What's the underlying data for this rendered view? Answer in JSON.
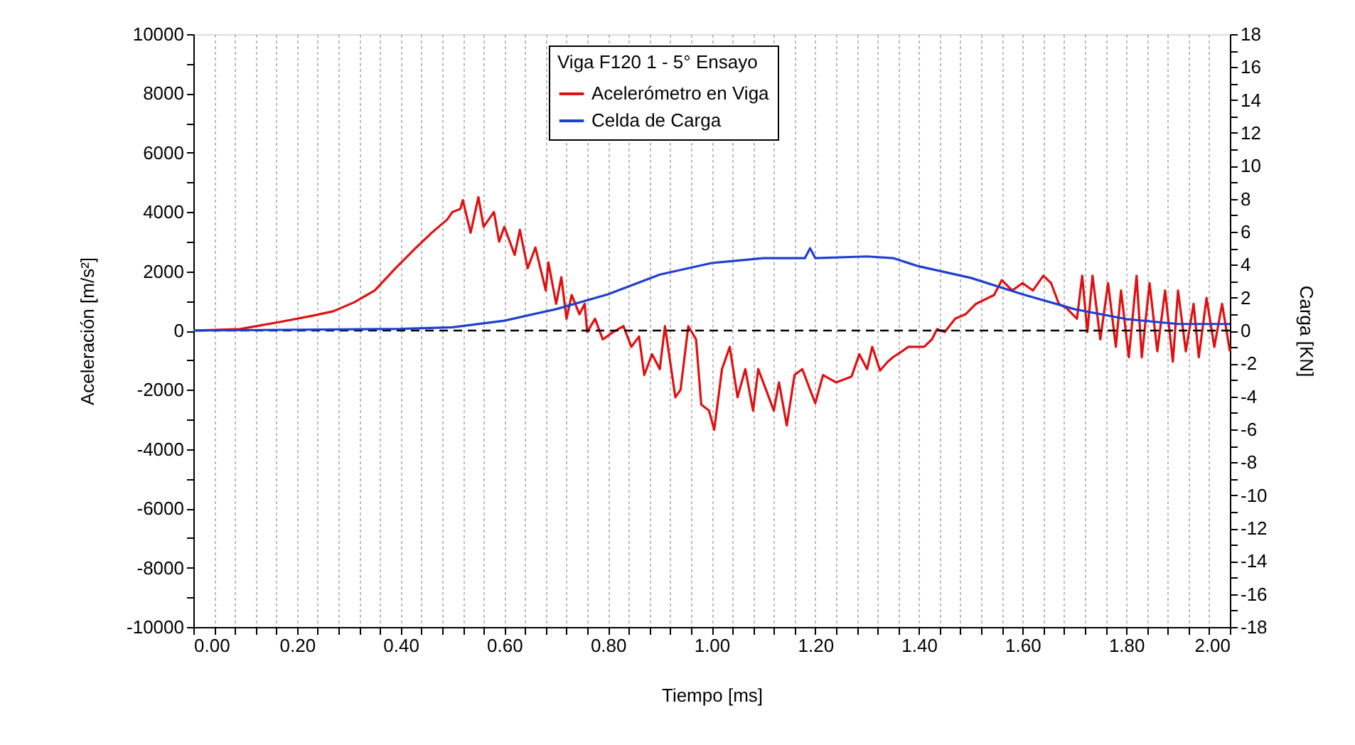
{
  "chart_data": {
    "type": "line",
    "xlabel": "Tiempo [ms]",
    "ylabel": "Aceleración [m/s²]",
    "y2label": "Carga [KN]",
    "legend_title": "Viga F120 1 - 5° Ensayo",
    "legend": "top",
    "grid": "x",
    "xlim": [
      0,
      2
    ],
    "ylim": [
      -10000,
      10000
    ],
    "y2lim": [
      -18,
      18
    ],
    "xticks": [
      {
        "value": 0,
        "label": "0.00"
      },
      {
        "value": 0.04,
        "label": null
      },
      {
        "value": 0.08,
        "label": null
      },
      {
        "value": 0.12,
        "label": null
      },
      {
        "value": 0.16,
        "label": null
      },
      {
        "value": 0.2,
        "label": "0.20"
      },
      {
        "value": 0.24,
        "label": null
      },
      {
        "value": 0.28,
        "label": null
      },
      {
        "value": 0.32,
        "label": null
      },
      {
        "value": 0.36,
        "label": null
      },
      {
        "value": 0.4,
        "label": "0.40"
      },
      {
        "value": 0.44,
        "label": null
      },
      {
        "value": 0.48,
        "label": null
      },
      {
        "value": 0.52,
        "label": null
      },
      {
        "value": 0.56,
        "label": null
      },
      {
        "value": 0.6,
        "label": "0.60"
      },
      {
        "value": 0.64,
        "label": null
      },
      {
        "value": 0.68,
        "label": null
      },
      {
        "value": 0.72,
        "label": null
      },
      {
        "value": 0.76,
        "label": null
      },
      {
        "value": 0.8,
        "label": "0.80"
      },
      {
        "value": 0.84,
        "label": null
      },
      {
        "value": 0.88,
        "label": null
      },
      {
        "value": 0.92,
        "label": null
      },
      {
        "value": 0.96,
        "label": null
      },
      {
        "value": 1,
        "label": "1.00"
      },
      {
        "value": 1.04,
        "label": null
      },
      {
        "value": 1.08,
        "label": null
      },
      {
        "value": 1.12,
        "label": null
      },
      {
        "value": 1.16,
        "label": null
      },
      {
        "value": 1.2,
        "label": "1.20"
      },
      {
        "value": 1.24,
        "label": null
      },
      {
        "value": 1.28,
        "label": null
      },
      {
        "value": 1.32,
        "label": null
      },
      {
        "value": 1.36,
        "label": null
      },
      {
        "value": 1.4,
        "label": "1.40"
      },
      {
        "value": 1.44,
        "label": null
      },
      {
        "value": 1.48,
        "label": null
      },
      {
        "value": 1.52,
        "label": null
      },
      {
        "value": 1.56,
        "label": null
      },
      {
        "value": 1.6,
        "label": "1.60"
      },
      {
        "value": 1.64,
        "label": null
      },
      {
        "value": 1.68,
        "label": null
      },
      {
        "value": 1.72,
        "label": null
      },
      {
        "value": 1.76,
        "label": null
      },
      {
        "value": 1.8,
        "label": "1.80"
      },
      {
        "value": 1.84,
        "label": null
      },
      {
        "value": 1.88,
        "label": null
      },
      {
        "value": 1.92,
        "label": null
      },
      {
        "value": 1.96,
        "label": null
      },
      {
        "value": 2,
        "label": "2.00"
      }
    ],
    "yticks": [
      -10000,
      {
        "value": -9000,
        "label": null
      },
      -8000,
      {
        "value": -7000,
        "label": null
      },
      -6000,
      {
        "value": -5000,
        "label": null
      },
      -4000,
      {
        "value": -3000,
        "label": null
      },
      -2000,
      {
        "value": -1000,
        "label": null
      },
      0,
      {
        "value": 1000,
        "label": null
      },
      2000,
      {
        "value": 3000,
        "label": null
      },
      4000,
      {
        "value": 5000,
        "label": null
      },
      6000,
      {
        "value": 7000,
        "label": null
      },
      8000,
      {
        "value": 9000,
        "label": null
      },
      10000
    ],
    "y2ticks": [
      -18,
      {
        "value": -17,
        "label": null
      },
      -16,
      {
        "value": -15,
        "label": null
      },
      -14,
      {
        "value": -13,
        "label": null
      },
      -12,
      {
        "value": -11,
        "label": null
      },
      -10,
      {
        "value": -9,
        "label": null
      },
      -8,
      {
        "value": -7,
        "label": null
      },
      -6,
      {
        "value": -5,
        "label": null
      },
      -4,
      {
        "value": -3,
        "label": null
      },
      -2,
      {
        "value": -1,
        "label": null
      },
      0,
      {
        "value": 1,
        "label": null
      },
      2,
      {
        "value": 3,
        "label": null
      },
      4,
      {
        "value": 5,
        "label": null
      },
      6,
      {
        "value": 7,
        "label": null
      },
      8,
      {
        "value": 9,
        "label": null
      },
      10,
      {
        "value": 11,
        "label": null
      },
      12,
      {
        "value": 13,
        "label": null
      },
      14,
      {
        "value": 15,
        "label": null
      },
      16,
      {
        "value": 17,
        "label": null
      },
      18
    ],
    "ref_lines": [
      {
        "axis": "y",
        "value": 0,
        "color": "#000000",
        "line_style": "dashed"
      }
    ],
    "series": [
      {
        "name": "Acelerómetro en Viga",
        "color": "#e01010",
        "x": [
          0,
          0.09,
          0.17,
          0.23,
          0.27,
          0.31,
          0.35,
          0.39,
          0.43,
          0.46,
          0.49,
          0.5,
          0.515,
          0.52,
          0.535,
          0.55,
          0.56,
          0.58,
          0.59,
          0.6,
          0.62,
          0.63,
          0.645,
          0.66,
          0.68,
          0.685,
          0.7,
          0.71,
          0.72,
          0.73,
          0.745,
          0.755,
          0.76,
          0.775,
          0.79,
          0.81,
          0.83,
          0.845,
          0.86,
          0.87,
          0.885,
          0.9,
          0.91,
          0.93,
          0.94,
          0.955,
          0.97,
          0.98,
          0.995,
          1.005,
          1.02,
          1.035,
          1.05,
          1.065,
          1.08,
          1.09,
          1.105,
          1.12,
          1.13,
          1.145,
          1.16,
          1.175,
          1.19,
          1.2,
          1.215,
          1.24,
          1.27,
          1.285,
          1.3,
          1.31,
          1.325,
          1.34,
          1.35,
          1.38,
          1.41,
          1.425,
          1.435,
          1.45,
          1.47,
          1.49,
          1.51,
          1.545,
          1.56,
          1.58,
          1.6,
          1.62,
          1.64,
          1.655,
          1.67,
          1.685,
          1.705,
          1.715,
          1.725,
          1.735,
          1.75,
          1.765,
          1.78,
          1.79,
          1.805,
          1.82,
          1.83,
          1.845,
          1.86,
          1.875,
          1.89,
          1.9,
          1.915,
          1.93,
          1.94,
          1.955,
          1.97,
          1.985,
          2.0
        ],
        "values": [
          0,
          50,
          300,
          500,
          650,
          950,
          1350,
          2100,
          2800,
          3300,
          3750,
          4000,
          4100,
          4400,
          3300,
          4500,
          3500,
          4000,
          3000,
          3500,
          2550,
          3400,
          2100,
          2800,
          1350,
          2300,
          900,
          1800,
          400,
          1200,
          550,
          900,
          -50,
          400,
          -300,
          -50,
          150,
          -550,
          -200,
          -1500,
          -800,
          -1300,
          150,
          -2250,
          -2000,
          150,
          -300,
          -2500,
          -2700,
          -3350,
          -1300,
          -550,
          -2250,
          -1300,
          -2700,
          -1300,
          -2000,
          -2700,
          -1750,
          -3200,
          -1500,
          -1300,
          -2000,
          -2450,
          -1500,
          -1750,
          -1550,
          -800,
          -1300,
          -550,
          -1350,
          -1050,
          -900,
          -550,
          -550,
          -300,
          50,
          -50,
          400,
          550,
          900,
          1200,
          1700,
          1350,
          1600,
          1350,
          1850,
          1600,
          900,
          750,
          400,
          1850,
          -50,
          1850,
          -300,
          1600,
          -550,
          1350,
          -900,
          1850,
          -900,
          1600,
          -700,
          1350,
          -1050,
          1350,
          -700,
          900,
          -900,
          1100,
          -550,
          900,
          -700
        ]
      },
      {
        "name": "Celda de Carga",
        "color": "#1f3fd0",
        "axis": "y2",
        "x": [
          0,
          0.4,
          0.5,
          0.6,
          0.7,
          0.8,
          0.9,
          1.0,
          1.1,
          1.18,
          1.19,
          1.2,
          1.3,
          1.35,
          1.4,
          1.5,
          1.6,
          1.7,
          1.8,
          1.9,
          2.0
        ],
        "values": [
          0,
          0.1,
          0.2,
          0.6,
          1.3,
          2.2,
          3.4,
          4.1,
          4.4,
          4.4,
          5.0,
          4.4,
          4.5,
          4.4,
          3.9,
          3.2,
          2.2,
          1.3,
          0.7,
          0.4,
          0.4
        ]
      }
    ]
  }
}
